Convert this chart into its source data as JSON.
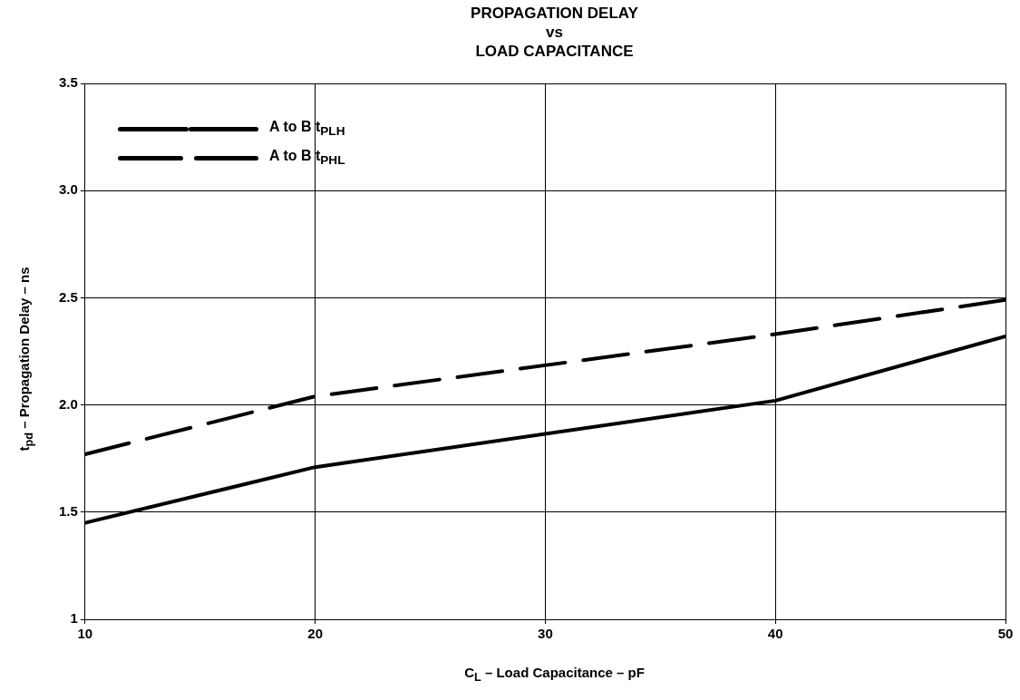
{
  "chart_data": {
    "type": "line",
    "title": "PROPAGATION DELAY\nvs\nLOAD CAPACITANCE",
    "xlabel": "C$_{L}$ – Load Capacitance – pF",
    "ylabel": "t$_{pd}$ – Propagation Delay – ns",
    "series": [
      {
        "name": "A to B t$_{PLH}$",
        "color": "#000000",
        "line_style": "solid",
        "x": [
          10,
          20,
          40,
          50
        ],
        "values": [
          1.45,
          1.71,
          2.02,
          2.32
        ]
      },
      {
        "name": "A to B t$_{PHL}$",
        "color": "#000000",
        "line_style": "dashed",
        "x": [
          10,
          20,
          40,
          50
        ],
        "values": [
          1.77,
          2.04,
          2.33,
          2.49
        ]
      }
    ],
    "xlim": [
      10,
      50
    ],
    "xticks": [
      10,
      20,
      30,
      40,
      50
    ],
    "ylim": [
      1,
      3.5
    ],
    "yticks": [
      1,
      {
        "value": 1.5,
        "label": "1.5"
      },
      {
        "value": 2,
        "label": "2.0"
      },
      {
        "value": 2.5,
        "label": "2.5"
      },
      {
        "value": 3,
        "label": "3.0"
      },
      {
        "value": 3.5,
        "label": "3.5"
      }
    ],
    "grid": true,
    "legend": "top left",
    "marker": "none"
  }
}
